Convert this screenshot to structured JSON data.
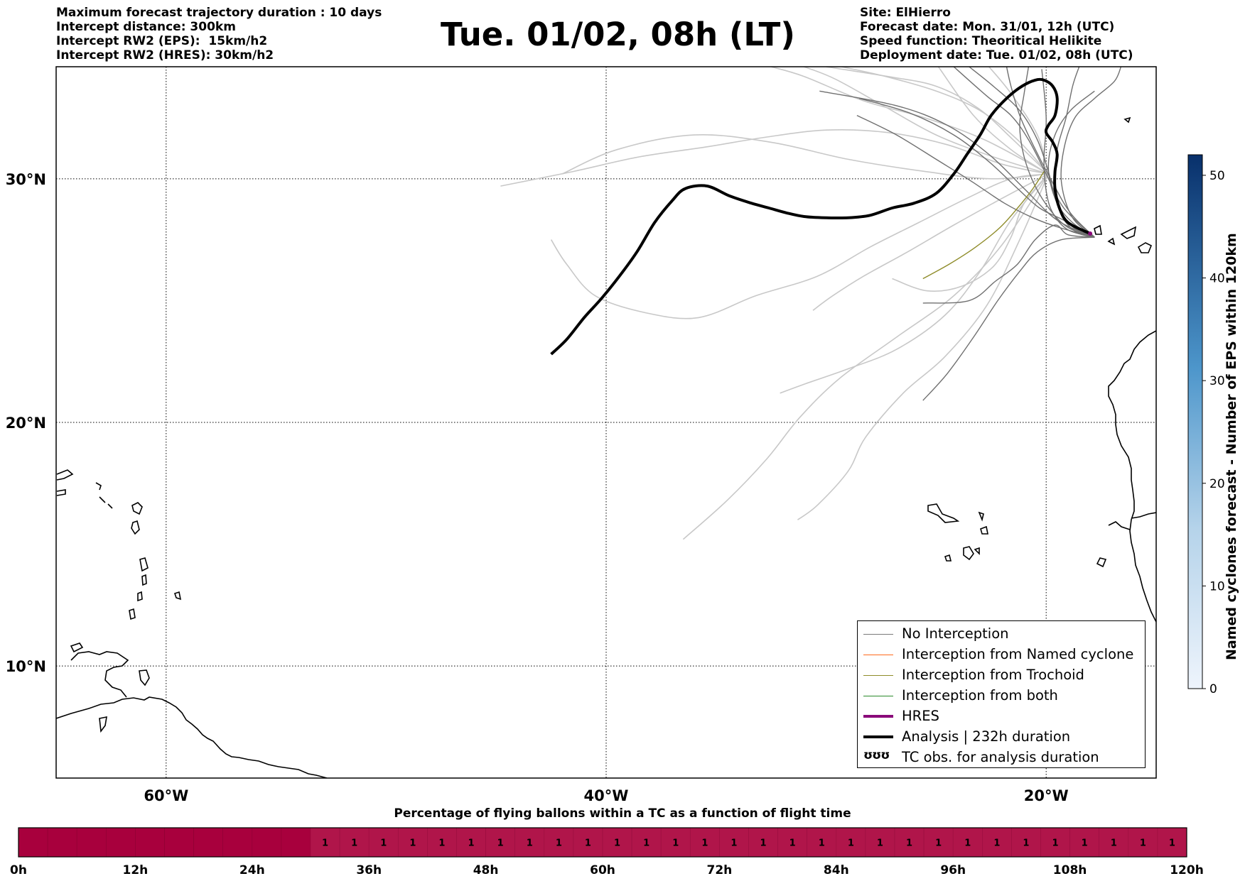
{
  "info_left": [
    "Maximum forecast trajectory duration : 10 days",
    "Intercept distance: 300km",
    "Intercept RW2 (EPS):  15km/h2",
    "Intercept RW2 (HRES): 30km/h2"
  ],
  "title": "Tue. 01/02, 08h (LT)",
  "info_right": [
    "Site: ElHierro",
    "Forecast date: Mon. 31/01, 12h (UTC)",
    "Speed function: Theoritical Helikite",
    "Deployment date: Tue. 01/02, 08h (UTC)"
  ],
  "map": {
    "lat_labels": [
      "30°N",
      "20°N",
      "10°N"
    ],
    "lon_labels": [
      "60°W",
      "40°W",
      "20°W"
    ],
    "lat_values": [
      30,
      20,
      10
    ],
    "lon_values": [
      -60,
      -40,
      -20
    ],
    "lon_range": [
      -65,
      -15
    ],
    "lat_range": [
      5.4,
      34.6
    ],
    "site": {
      "lon": -18.0,
      "lat": 27.75
    },
    "analysis_track": [
      [
        -18.0,
        27.75
      ],
      [
        -19.0,
        28.2
      ],
      [
        -19.4,
        28.8
      ],
      [
        -19.6,
        29.6
      ],
      [
        -19.6,
        30.3
      ],
      [
        -19.5,
        31.0
      ],
      [
        -19.7,
        31.5
      ],
      [
        -20.0,
        31.9
      ],
      [
        -19.9,
        32.2
      ],
      [
        -19.6,
        32.6
      ],
      [
        -19.5,
        33.3
      ],
      [
        -19.7,
        33.8
      ],
      [
        -20.1,
        34.05
      ],
      [
        -20.5,
        34.05
      ],
      [
        -21.1,
        33.8
      ],
      [
        -21.8,
        33.3
      ],
      [
        -22.5,
        32.6
      ],
      [
        -23.0,
        31.8
      ],
      [
        -23.6,
        31.0
      ],
      [
        -24.2,
        30.2
      ],
      [
        -25.0,
        29.4
      ],
      [
        -26.0,
        29.0
      ],
      [
        -27.0,
        28.8
      ],
      [
        -28.0,
        28.5
      ],
      [
        -29.0,
        28.4
      ],
      [
        -30.0,
        28.4
      ],
      [
        -31.0,
        28.45
      ],
      [
        -31.8,
        28.6
      ],
      [
        -32.6,
        28.8
      ],
      [
        -33.4,
        29.0
      ],
      [
        -34.4,
        29.3
      ],
      [
        -35.4,
        29.7
      ],
      [
        -36.4,
        29.6
      ],
      [
        -37.0,
        29.1
      ],
      [
        -37.8,
        28.2
      ],
      [
        -38.6,
        27.0
      ],
      [
        -39.4,
        26.0
      ],
      [
        -40.2,
        25.1
      ],
      [
        -41.0,
        24.3
      ],
      [
        -41.8,
        23.4
      ],
      [
        -42.5,
        22.8
      ]
    ],
    "trochoid_track": [
      [
        -20.1,
        30.3
      ],
      [
        -20.6,
        29.6
      ],
      [
        -21.3,
        28.8
      ],
      [
        -22.1,
        28.0
      ],
      [
        -23.2,
        27.2
      ],
      [
        -24.4,
        26.5
      ],
      [
        -25.6,
        25.9
      ]
    ],
    "eps_tracks_dark": [
      [
        [
          -17.8,
          27.6
        ],
        [
          -19,
          27.9
        ],
        [
          -19.7,
          28.6
        ],
        [
          -20.0,
          29.5
        ],
        [
          -20.1,
          30.8
        ],
        [
          -20.0,
          32.5
        ],
        [
          -20.2,
          34.5
        ]
      ],
      [
        [
          -17.8,
          27.6
        ],
        [
          -18.8,
          28.2
        ],
        [
          -19.5,
          29.0
        ],
        [
          -19.9,
          30.3
        ],
        [
          -20.4,
          31.6
        ],
        [
          -21.2,
          32.8
        ],
        [
          -22.4,
          33.8
        ],
        [
          -23.5,
          34.6
        ]
      ],
      [
        [
          -17.8,
          27.6
        ],
        [
          -19.2,
          28.3
        ],
        [
          -20.3,
          28.8
        ],
        [
          -21.3,
          29.6
        ],
        [
          -22.6,
          30.7
        ],
        [
          -24.2,
          31.8
        ],
        [
          -26.2,
          32.7
        ],
        [
          -28.5,
          33.3
        ]
      ],
      [
        [
          -17.8,
          27.6
        ],
        [
          -19,
          28.0
        ],
        [
          -19.8,
          28.7
        ],
        [
          -20.5,
          29.7
        ],
        [
          -21.0,
          30.9
        ],
        [
          -21.2,
          32.2
        ],
        [
          -21.0,
          33.5
        ],
        [
          -20.8,
          34.6
        ]
      ],
      [
        [
          -17.8,
          27.6
        ],
        [
          -18.6,
          27.8
        ],
        [
          -19.3,
          28.5
        ],
        [
          -19.6,
          29.8
        ],
        [
          -19.5,
          31.2
        ],
        [
          -19.1,
          32.5
        ],
        [
          -18.8,
          33.8
        ],
        [
          -18.5,
          34.6
        ]
      ],
      [
        [
          -17.8,
          27.6
        ],
        [
          -18.9,
          28.1
        ],
        [
          -19.6,
          29.2
        ],
        [
          -19.9,
          30.5
        ],
        [
          -19.6,
          31.8
        ],
        [
          -18.9,
          32.8
        ],
        [
          -17.8,
          33.6
        ]
      ],
      [
        [
          -17.8,
          27.6
        ],
        [
          -19.4,
          28.0
        ],
        [
          -20.6,
          28.4
        ],
        [
          -21.9,
          29.0
        ],
        [
          -23.4,
          29.9
        ],
        [
          -25.0,
          30.8
        ],
        [
          -26.8,
          31.8
        ],
        [
          -28.6,
          32.6
        ]
      ],
      [
        [
          -17.8,
          27.6
        ],
        [
          -19,
          27.7
        ],
        [
          -19.6,
          28.1
        ],
        [
          -20.5,
          27.5
        ],
        [
          -21.3,
          26.5
        ],
        [
          -22.3,
          25.8
        ],
        [
          -23.5,
          25.0
        ],
        [
          -25.6,
          24.9
        ]
      ],
      [
        [
          -17.8,
          27.6
        ],
        [
          -18.8,
          28.4
        ],
        [
          -19.3,
          29.8
        ],
        [
          -19.2,
          31.2
        ],
        [
          -18.7,
          32.5
        ],
        [
          -17.8,
          33.3
        ],
        [
          -16.9,
          34.0
        ],
        [
          -16.6,
          34.6
        ]
      ],
      [
        [
          -17.8,
          27.6
        ],
        [
          -19.3,
          27.5
        ],
        [
          -20.4,
          27.0
        ],
        [
          -21.2,
          26.2
        ],
        [
          -22.2,
          25.0
        ],
        [
          -23.3,
          23.5
        ],
        [
          -24.5,
          22.0
        ],
        [
          -25.6,
          20.9
        ]
      ],
      [
        [
          -17.8,
          27.6
        ],
        [
          -18.9,
          28.6
        ],
        [
          -19.8,
          30.0
        ],
        [
          -20.6,
          31.4
        ],
        [
          -21.2,
          32.6
        ],
        [
          -21.6,
          33.8
        ],
        [
          -21.8,
          34.6
        ]
      ],
      [
        [
          -17.8,
          27.6
        ],
        [
          -19.5,
          28.3
        ],
        [
          -21.0,
          29.6
        ],
        [
          -22.6,
          31.0
        ],
        [
          -24.5,
          32.2
        ],
        [
          -26.8,
          33.0
        ],
        [
          -30.3,
          33.6
        ]
      ],
      [
        [
          -17.8,
          27.6
        ],
        [
          -19.2,
          28.8
        ],
        [
          -20.0,
          30.2
        ],
        [
          -20.8,
          31.6
        ],
        [
          -21.6,
          32.6
        ],
        [
          -22.7,
          33.4
        ],
        [
          -24.2,
          34.6
        ]
      ]
    ],
    "eps_tracks_light": [
      [
        [
          -19.9,
          30.2
        ],
        [
          -22,
          30.6
        ],
        [
          -24.5,
          31.4
        ],
        [
          -27.2,
          31.9
        ],
        [
          -30,
          32.0
        ],
        [
          -32.8,
          31.7
        ],
        [
          -35.5,
          31.3
        ],
        [
          -38.5,
          30.9
        ],
        [
          -41.5,
          30.3
        ],
        [
          -44.8,
          29.7
        ]
      ],
      [
        [
          -19.9,
          30.2
        ],
        [
          -22.5,
          30.0
        ],
        [
          -25.5,
          30.3
        ],
        [
          -29,
          30.8
        ],
        [
          -32.5,
          31.5
        ],
        [
          -36,
          31.8
        ],
        [
          -39.5,
          31.2
        ],
        [
          -42,
          30.2
        ]
      ],
      [
        [
          -19.9,
          30.2
        ],
        [
          -22,
          29.2
        ],
        [
          -24.2,
          28.1
        ],
        [
          -26.3,
          27.0
        ],
        [
          -28.3,
          26.0
        ],
        [
          -29.7,
          25.2
        ],
        [
          -30.6,
          24.6
        ]
      ],
      [
        [
          -19.9,
          30.2
        ],
        [
          -21.6,
          28.3
        ],
        [
          -23.0,
          26.2
        ],
        [
          -24.6,
          24.4
        ],
        [
          -26.8,
          23.0
        ],
        [
          -29.0,
          22.2
        ],
        [
          -30.9,
          21.6
        ],
        [
          -32.1,
          21.2
        ]
      ],
      [
        [
          -19.9,
          30.2
        ],
        [
          -21.2,
          27.5
        ],
        [
          -22.7,
          24.8
        ],
        [
          -24.6,
          22.7
        ],
        [
          -26.5,
          21.2
        ],
        [
          -28.2,
          19.4
        ],
        [
          -29.0,
          18.0
        ],
        [
          -30.4,
          16.6
        ],
        [
          -31.3,
          16.0
        ]
      ],
      [
        [
          -19.9,
          30.2
        ],
        [
          -22.0,
          27.3
        ],
        [
          -24.2,
          25.2
        ],
        [
          -26.8,
          23.5
        ],
        [
          -29.4,
          21.8
        ],
        [
          -31.2,
          20.2
        ],
        [
          -32.7,
          18.5
        ],
        [
          -34.5,
          16.8
        ],
        [
          -36.5,
          15.2
        ]
      ],
      [
        [
          -19.9,
          30.2
        ],
        [
          -21.3,
          31.6
        ],
        [
          -23.0,
          32.8
        ],
        [
          -25.0,
          33.6
        ],
        [
          -27.3,
          34.2
        ],
        [
          -29.3,
          34.6
        ]
      ],
      [
        [
          -19.9,
          30.2
        ],
        [
          -22.8,
          31.6
        ],
        [
          -25.5,
          32.5
        ],
        [
          -28.3,
          33.2
        ],
        [
          -31.0,
          34.2
        ],
        [
          -32.5,
          34.6
        ]
      ],
      [
        [
          -19.9,
          30.2
        ],
        [
          -21.6,
          30.0
        ],
        [
          -23.6,
          29.2
        ],
        [
          -25.8,
          28.2
        ],
        [
          -28.0,
          27.2
        ],
        [
          -30.4,
          26.0
        ],
        [
          -33.2,
          25.2
        ],
        [
          -35.8,
          24.3
        ],
        [
          -38.2,
          24.5
        ],
        [
          -40.5,
          25.2
        ],
        [
          -41.8,
          26.5
        ],
        [
          -42.5,
          27.5
        ]
      ],
      [
        [
          -19.9,
          30.2
        ],
        [
          -21.0,
          29.0
        ],
        [
          -21.6,
          27.6
        ],
        [
          -22.4,
          26.4
        ],
        [
          -23.8,
          25.6
        ],
        [
          -25.4,
          25.4
        ],
        [
          -27.0,
          25.9
        ]
      ],
      [
        [
          -19.9,
          30.2
        ],
        [
          -20.4,
          31.8
        ],
        [
          -21.6,
          33.5
        ],
        [
          -22.6,
          34.6
        ]
      ],
      [
        [
          -19.9,
          30.2
        ],
        [
          -21.6,
          31.2
        ],
        [
          -23.3,
          32.6
        ],
        [
          -24.9,
          34.6
        ]
      ],
      [
        [
          -19.9,
          30.2
        ],
        [
          -21.5,
          31.6
        ],
        [
          -23.1,
          32.9
        ],
        [
          -25.0,
          33.8
        ],
        [
          -27.2,
          34.2
        ],
        [
          -30.0,
          34.6
        ]
      ],
      [
        [
          -19.9,
          30.2
        ],
        [
          -22.4,
          30.9
        ],
        [
          -25.0,
          31.8
        ],
        [
          -27.4,
          33.0
        ],
        [
          -29.6,
          34.1
        ],
        [
          -31.0,
          34.6
        ]
      ]
    ]
  },
  "legend": {
    "items": [
      {
        "label": "No Interception",
        "color": "#7a7a7a",
        "width": 1
      },
      {
        "label": "Interception from Named cyclone",
        "color": "#ff6a1c",
        "width": 1
      },
      {
        "label": "Interception from Trochoid",
        "color": "#8f8c2a",
        "width": 1
      },
      {
        "label": "Interception from both",
        "color": "#2b8a2b",
        "width": 1
      },
      {
        "label": "HRES",
        "color": "#8a0a7a",
        "width": 4
      },
      {
        "label": "Analysis | 232h duration",
        "color": "#000000",
        "width": 4
      },
      {
        "label": "TC obs. for analysis duration",
        "color": null,
        "symbol": "ʊʊʊ"
      }
    ]
  },
  "colorbar": {
    "label": "Named cyclones forecast - Number of EPS within 120km",
    "ticks": [
      "0",
      "10",
      "20",
      "30",
      "40",
      "50"
    ],
    "tick_values": [
      0,
      10,
      20,
      30,
      40,
      50
    ],
    "max": 52,
    "color_low": "#eef4fc",
    "color_high": "#08306b"
  },
  "timeline": {
    "title": "Percentage of flying ballons within a TC as a function of flight time",
    "tick_labels": [
      "0h",
      "12h",
      "24h",
      "36h",
      "48h",
      "60h",
      "72h",
      "84h",
      "96h",
      "108h",
      "120h"
    ],
    "cells": 40,
    "empty_cells": 10,
    "value_label": "1",
    "color_empty": "#a8003d",
    "color_value": "#b0154a"
  }
}
